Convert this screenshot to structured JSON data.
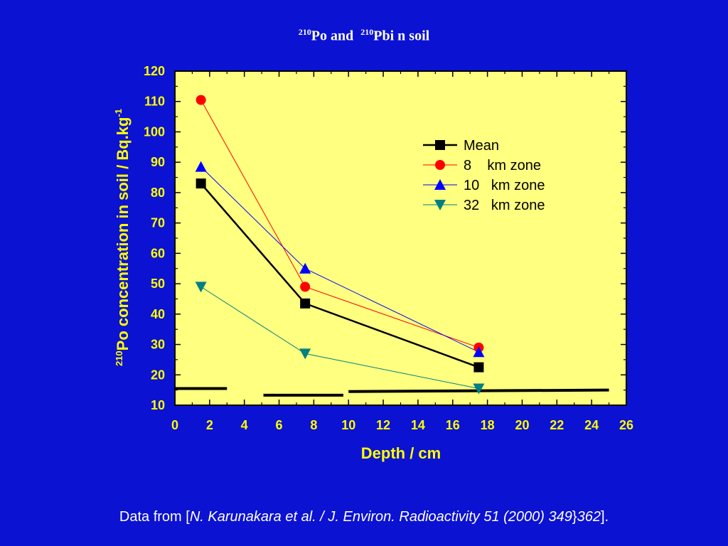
{
  "slide": {
    "title": {
      "sup1": "210",
      "part1": "Po and ",
      "sup2": "210",
      "part2": "Pbi n soil"
    },
    "caption": {
      "prefix": "Data from [",
      "citation": "N. Karunakara et al. / J. Environ. Radioactivity 51 (2000) 349",
      "separator": "}",
      "pages_end": "362",
      "suffix": "]."
    }
  },
  "chart_data": {
    "type": "line",
    "xlabel": "Depth / cm",
    "ylabel": {
      "sup": "210",
      "text": "Po concentration in soil / Bq.kg",
      "exponent": "-1"
    },
    "xlim": [
      0,
      26
    ],
    "ylim": [
      10,
      120
    ],
    "xticks": [
      0,
      2,
      4,
      6,
      8,
      10,
      12,
      14,
      16,
      18,
      20,
      22,
      24,
      26
    ],
    "yticks": [
      10,
      20,
      30,
      40,
      50,
      60,
      70,
      80,
      90,
      100,
      110,
      120
    ],
    "grid": false,
    "legend_position": "top-right",
    "series": [
      {
        "name": "Mean",
        "x": [
          1.5,
          7.5,
          17.5
        ],
        "y": [
          83,
          43.5,
          22.5
        ],
        "color": "#000000",
        "marker": "square",
        "line_width": 2.5
      },
      {
        "name": "8    km zone",
        "x": [
          1.5,
          7.5,
          17.5
        ],
        "y": [
          110.5,
          49,
          29
        ],
        "color": "#ff0000",
        "marker": "circle",
        "line_width": 1
      },
      {
        "name": "10   km zone",
        "x": [
          1.5,
          7.5,
          17.5
        ],
        "y": [
          88.5,
          55,
          27.5
        ],
        "color": "#0000ff",
        "marker": "triangle-up",
        "line_width": 1
      },
      {
        "name": "32   km zone",
        "x": [
          1.5,
          7.5,
          17.5
        ],
        "y": [
          49,
          27,
          15.5
        ],
        "color": "#008080",
        "marker": "triangle-down",
        "line_width": 1
      }
    ],
    "reference_segments": [
      {
        "x": [
          0,
          3
        ],
        "y": [
          15.5,
          15.5
        ]
      },
      {
        "x": [
          5.1,
          9.7
        ],
        "y": [
          13.3,
          13.3
        ]
      },
      {
        "x": [
          10,
          25
        ],
        "y": [
          14.5,
          15
        ]
      }
    ],
    "colors": {
      "background": "#0b12d2",
      "plot_area": "#ffff80",
      "axis_text": "#ffff00",
      "caption_text": "#ffffff"
    }
  }
}
